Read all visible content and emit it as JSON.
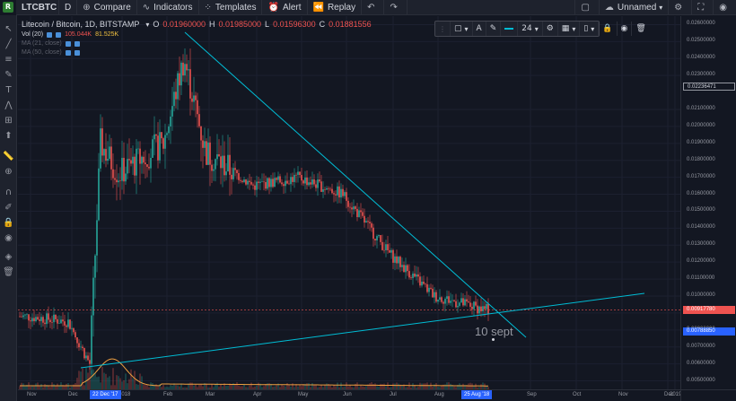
{
  "topbar": {
    "symbol": "LTCBTC",
    "interval": "D",
    "compare_label": "Compare",
    "indicators_label": "Indicators",
    "templates_label": "Templates",
    "alert_label": "Alert",
    "replay_label": "Replay",
    "layout_name": "Unnamed"
  },
  "legend": {
    "title": "Litecoin / Bitcoin, 1D, BITSTAMP",
    "o_label": "O",
    "o_value": "0.01960000",
    "h_label": "H",
    "h_value": "0.01985000",
    "l_label": "L",
    "l_value": "0.01596300",
    "c_label": "C",
    "c_value": "0.01881556",
    "vol_label": "Vol (20)",
    "vol_value1": "105.044K",
    "vol_value2": "81.525K",
    "ma1_label": "MA (21, close)",
    "ma2_label": "MA (50, close)"
  },
  "drawing_toolbar": {
    "font_size": "24"
  },
  "price_axis": {
    "labels": [
      "0.02600000",
      "0.02500000",
      "0.02400000",
      "0.02300000",
      "0.02100000",
      "0.02000000",
      "0.01900000",
      "0.01800000",
      "0.01700000",
      "0.01600000",
      "0.01500000",
      "0.01400000",
      "0.01300000",
      "0.01200000",
      "0.01100000",
      "0.01000000",
      "0.00900000",
      "0.00800000",
      "0.00700000",
      "0.00600000",
      "0.00500000"
    ],
    "tag_top": "0.02236471",
    "tag_current": "0.00917780",
    "tag_low": "0.00788850"
  },
  "time_axis": {
    "labels": [
      "Nov",
      "Dec",
      "2018",
      "Feb",
      "Mar",
      "Apr",
      "May",
      "Jun",
      "Jul",
      "Aug",
      "Sep",
      "Oct",
      "Nov",
      "Dec",
      "2019"
    ],
    "tag_left": "22 Dec '17",
    "tag_right": "25 Aug '18"
  },
  "annotation": "10 sept",
  "colors": {
    "up": "#26a69a",
    "down": "#ef5350",
    "trendline": "#00bcd4",
    "background": "#131722"
  },
  "chart_data": {
    "type": "candlestick",
    "title": "Litecoin / Bitcoin, 1D, BITSTAMP",
    "ylim": [
      0.0045,
      0.0265
    ],
    "x_range": [
      "Nov 2017",
      "Jan 2019"
    ],
    "approx_close_path": [
      {
        "x": "Nov",
        "y": 0.0088
      },
      {
        "x": "Dec",
        "y": 0.0085
      },
      {
        "x": "22 Dec '17",
        "y": 0.006
      },
      {
        "x": "late Dec",
        "y": 0.019
      },
      {
        "x": "2018",
        "y": 0.0172
      },
      {
        "x": "Feb",
        "y": 0.019
      },
      {
        "x": "mid Feb",
        "y": 0.024
      },
      {
        "x": "Mar",
        "y": 0.0185
      },
      {
        "x": "Apr",
        "y": 0.0165
      },
      {
        "x": "May",
        "y": 0.017
      },
      {
        "x": "Jun",
        "y": 0.016
      },
      {
        "x": "Jul",
        "y": 0.0125
      },
      {
        "x": "Aug",
        "y": 0.01
      },
      {
        "x": "25 Aug '18",
        "y": 0.0092
      }
    ]
  }
}
